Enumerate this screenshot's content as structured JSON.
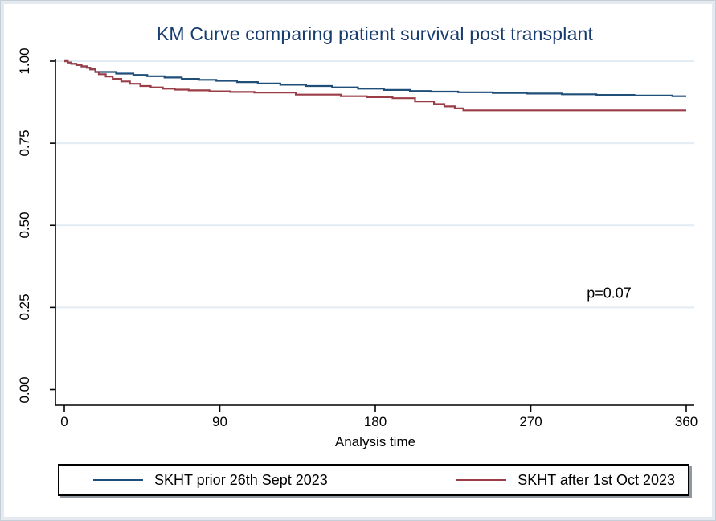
{
  "chart_data": {
    "type": "line",
    "subtype": "kaplan-meier-step",
    "title": "KM Curve comparing patient survival post transplant",
    "xlabel": "Analysis time",
    "ylabel": "",
    "xlim": [
      0,
      360
    ],
    "ylim": [
      0.0,
      1.0
    ],
    "x_ticks": [
      "0",
      "90",
      "180",
      "270",
      "360"
    ],
    "y_ticks": [
      "0.00",
      "0.25",
      "0.50",
      "0.75",
      "1.00"
    ],
    "grid": "horizontal",
    "legend_position": "bottom-box",
    "annotation": {
      "text": "p=0.07",
      "x": 313,
      "y": 0.29
    },
    "series": [
      {
        "name": "SKHT prior 26th Sept 2023",
        "color": "#1f4e79",
        "points": [
          [
            0,
            1.0
          ],
          [
            2,
            0.996
          ],
          [
            4,
            0.992
          ],
          [
            7,
            0.988
          ],
          [
            10,
            0.984
          ],
          [
            13,
            0.98
          ],
          [
            15,
            0.975
          ],
          [
            18,
            0.967
          ],
          [
            30,
            0.962
          ],
          [
            40,
            0.958
          ],
          [
            48,
            0.954
          ],
          [
            58,
            0.95
          ],
          [
            68,
            0.946
          ],
          [
            78,
            0.943
          ],
          [
            88,
            0.94
          ],
          [
            100,
            0.936
          ],
          [
            112,
            0.932
          ],
          [
            125,
            0.928
          ],
          [
            140,
            0.924
          ],
          [
            155,
            0.92
          ],
          [
            170,
            0.916
          ],
          [
            185,
            0.912
          ],
          [
            200,
            0.909
          ],
          [
            212,
            0.907
          ],
          [
            228,
            0.905
          ],
          [
            248,
            0.903
          ],
          [
            268,
            0.901
          ],
          [
            288,
            0.899
          ],
          [
            308,
            0.897
          ],
          [
            330,
            0.895
          ],
          [
            352,
            0.893
          ],
          [
            360,
            0.893
          ]
        ]
      },
      {
        "name": "SKHT after 1st Oct 2023",
        "color": "#9b3d46",
        "points": [
          [
            0,
            1.0
          ],
          [
            2,
            0.996
          ],
          [
            4,
            0.992
          ],
          [
            7,
            0.988
          ],
          [
            10,
            0.984
          ],
          [
            13,
            0.98
          ],
          [
            15,
            0.975
          ],
          [
            18,
            0.967
          ],
          [
            20,
            0.96
          ],
          [
            24,
            0.953
          ],
          [
            28,
            0.946
          ],
          [
            33,
            0.938
          ],
          [
            38,
            0.931
          ],
          [
            44,
            0.924
          ],
          [
            50,
            0.92
          ],
          [
            57,
            0.916
          ],
          [
            64,
            0.913
          ],
          [
            72,
            0.911
          ],
          [
            84,
            0.908
          ],
          [
            96,
            0.906
          ],
          [
            110,
            0.904
          ],
          [
            134,
            0.898
          ],
          [
            160,
            0.893
          ],
          [
            175,
            0.89
          ],
          [
            190,
            0.887
          ],
          [
            203,
            0.877
          ],
          [
            214,
            0.869
          ],
          [
            220,
            0.862
          ],
          [
            226,
            0.856
          ],
          [
            231,
            0.85
          ],
          [
            360,
            0.85
          ]
        ]
      }
    ],
    "colors": {
      "title": "#173c6e",
      "axis": "#000000",
      "gridline": "#e4ecf3",
      "legend_border": "#000000",
      "background": "#ffffff"
    }
  }
}
